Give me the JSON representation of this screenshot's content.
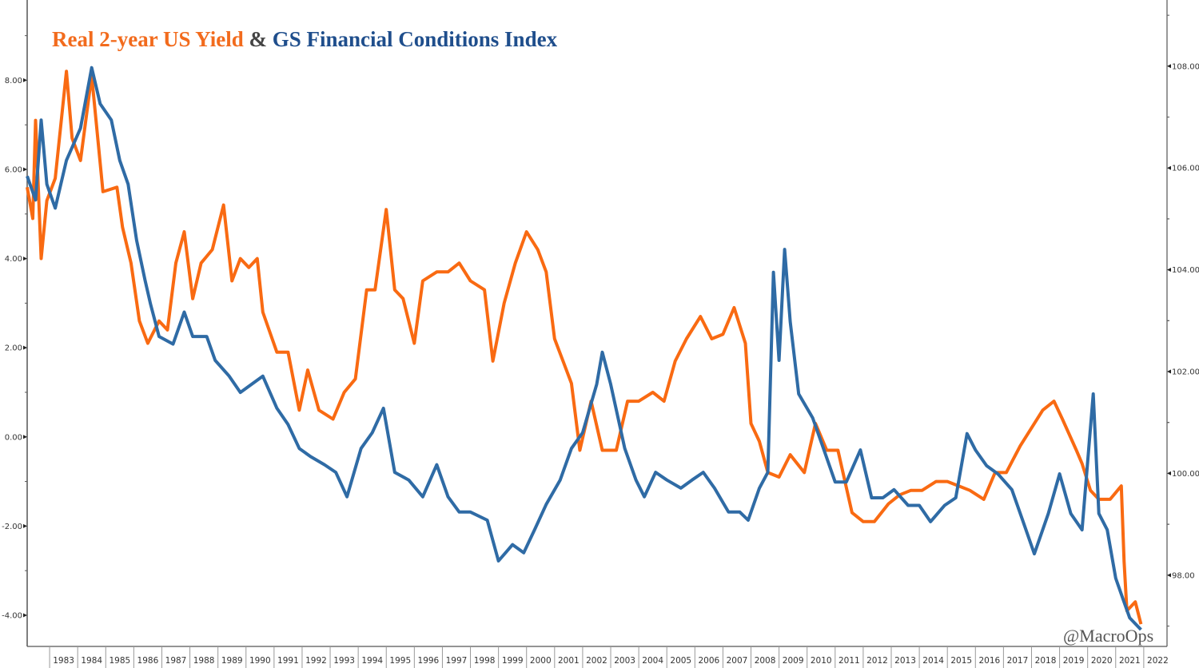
{
  "chart_data": {
    "type": "line",
    "title": {
      "part1": "Real 2-year US Yield",
      "joiner": "&",
      "part2": "GS Financial Conditions Index"
    },
    "watermark": "@MacroOps",
    "xlim": [
      1982.2,
      2022.83
    ],
    "x_tick_labels": [
      "1983",
      "1984",
      "1985",
      "1986",
      "1987",
      "1988",
      "1989",
      "1990",
      "1991",
      "1992",
      "1993",
      "1994",
      "1995",
      "1996",
      "1997",
      "1998",
      "1999",
      "2000",
      "2001",
      "2002",
      "2003",
      "2004",
      "2005",
      "2006",
      "2007",
      "2008",
      "2009",
      "2010",
      "2011",
      "2012",
      "2013",
      "2014",
      "2015",
      "2016",
      "2017",
      "2018",
      "2019",
      "2020",
      "2021",
      "2022"
    ],
    "y_left": {
      "ylim": [
        -4.7,
        9.8
      ],
      "ticks": [
        -4,
        -2,
        0,
        2,
        4,
        6,
        8
      ],
      "tick_labels": [
        "-4.00",
        "-2.00",
        "0.00",
        "2.00",
        "4.00",
        "6.00",
        "8.00"
      ]
    },
    "y_right": {
      "ylim": [
        96.6,
        109.3
      ],
      "ticks": [
        98,
        100,
        102,
        104,
        106,
        108
      ],
      "tick_labels": [
        "98.00",
        "100.00",
        "102.00",
        "104.00",
        "106.00",
        "108.00"
      ]
    },
    "grid": false,
    "legend": "none (title colored by series)",
    "series": [
      {
        "name": "Real 2-year US Yield",
        "axis": "left",
        "color": "#f96a12",
        "x": [
          1982.2,
          1982.4,
          1982.5,
          1982.7,
          1982.9,
          1983.2,
          1983.6,
          1983.8,
          1984.1,
          1984.5,
          1984.9,
          1985.4,
          1985.6,
          1985.9,
          1986.2,
          1986.5,
          1986.9,
          1987.2,
          1987.5,
          1987.8,
          1988.1,
          1988.4,
          1988.8,
          1989.2,
          1989.5,
          1989.8,
          1990.1,
          1990.4,
          1990.6,
          1991.1,
          1991.5,
          1991.9,
          1992.2,
          1992.6,
          1993.1,
          1993.5,
          1993.9,
          1994.3,
          1994.6,
          1995.0,
          1995.3,
          1995.6,
          1996.0,
          1996.3,
          1996.8,
          1997.2,
          1997.6,
          1998.0,
          1998.5,
          1998.8,
          1999.2,
          1999.6,
          2000.0,
          2000.4,
          2000.7,
          2001.0,
          2001.3,
          2001.6,
          2001.9,
          2002.3,
          2002.7,
          2003.2,
          2003.6,
          2004.0,
          2004.5,
          2004.9,
          2005.3,
          2005.7,
          2006.2,
          2006.6,
          2007.0,
          2007.4,
          2007.8,
          2008.0,
          2008.3,
          2008.6,
          2009.0,
          2009.4,
          2009.9,
          2010.3,
          2010.7,
          2011.1,
          2011.6,
          2012.0,
          2012.4,
          2012.9,
          2013.3,
          2013.7,
          2014.1,
          2014.6,
          2015.0,
          2015.4,
          2015.8,
          2016.3,
          2016.7,
          2017.1,
          2017.6,
          2018.0,
          2018.4,
          2018.8,
          2019.1,
          2019.6,
          2019.8,
          2020.1,
          2020.4,
          2020.8,
          2021.2,
          2021.3,
          2021.4,
          2021.7,
          2021.9
        ],
        "y": [
          5.6,
          4.9,
          7.1,
          4.0,
          5.3,
          5.8,
          8.2,
          6.7,
          6.2,
          8.1,
          5.5,
          5.6,
          4.7,
          3.9,
          2.6,
          2.1,
          2.6,
          2.4,
          3.9,
          4.6,
          3.1,
          3.9,
          4.2,
          5.2,
          3.5,
          4.0,
          3.8,
          4.0,
          2.8,
          1.9,
          1.9,
          0.6,
          1.5,
          0.6,
          0.4,
          1.0,
          1.3,
          3.3,
          3.3,
          5.1,
          3.3,
          3.1,
          2.1,
          3.5,
          3.7,
          3.7,
          3.9,
          3.5,
          3.3,
          1.7,
          3.0,
          3.9,
          4.6,
          4.2,
          3.7,
          2.2,
          1.7,
          1.2,
          -0.3,
          0.8,
          -0.3,
          -0.3,
          0.8,
          0.8,
          1.0,
          0.8,
          1.7,
          2.2,
          2.7,
          2.2,
          2.3,
          2.9,
          2.1,
          0.3,
          -0.1,
          -0.8,
          -0.9,
          -0.4,
          -0.8,
          0.3,
          -0.3,
          -0.3,
          -1.7,
          -1.9,
          -1.9,
          -1.5,
          -1.3,
          -1.2,
          -1.2,
          -1.0,
          -1.0,
          -1.1,
          -1.2,
          -1.4,
          -0.8,
          -0.8,
          -0.2,
          0.2,
          0.6,
          0.8,
          0.4,
          -0.3,
          -0.6,
          -1.2,
          -1.4,
          -1.4,
          -1.1,
          -2.8,
          -3.9,
          -3.7,
          -4.2
        ]
      },
      {
        "name": "GS Financial Conditions Index",
        "axis": "right",
        "color": "#2f6ba5",
        "x": [
          1982.2,
          1982.5,
          1982.7,
          1982.9,
          1983.2,
          1983.6,
          1984.1,
          1984.5,
          1984.8,
          1985.2,
          1985.5,
          1985.8,
          1986.1,
          1986.4,
          1986.6,
          1986.9,
          1987.4,
          1987.8,
          1988.1,
          1988.6,
          1988.9,
          1989.4,
          1989.8,
          1990.2,
          1990.6,
          1991.1,
          1991.5,
          1991.9,
          1992.3,
          1992.8,
          1993.2,
          1993.6,
          1994.1,
          1994.5,
          1994.9,
          1995.3,
          1995.8,
          1996.3,
          1996.8,
          1997.2,
          1997.6,
          1998.0,
          1998.6,
          1999.0,
          1999.5,
          1999.9,
          2000.3,
          2000.7,
          2001.2,
          2001.6,
          2002.0,
          2002.5,
          2002.7,
          2003.0,
          2003.5,
          2003.9,
          2004.2,
          2004.6,
          2005.0,
          2005.5,
          2005.9,
          2006.3,
          2006.7,
          2007.2,
          2007.6,
          2007.9,
          2008.3,
          2008.6,
          2008.8,
          2009.0,
          2009.2,
          2009.4,
          2009.7,
          2010.2,
          2010.6,
          2011.0,
          2011.4,
          2011.9,
          2012.3,
          2012.7,
          2013.1,
          2013.6,
          2014.0,
          2014.4,
          2014.9,
          2015.3,
          2015.7,
          2016.0,
          2016.4,
          2016.8,
          2017.3,
          2017.7,
          2018.1,
          2018.6,
          2019.0,
          2019.4,
          2019.8,
          2020.2,
          2020.4,
          2020.7,
          2021.0,
          2021.3,
          2021.5,
          2021.9
        ],
        "y": [
          105.84,
          105.37,
          106.94,
          105.68,
          105.21,
          106.15,
          106.78,
          107.97,
          107.26,
          106.94,
          106.15,
          105.68,
          104.58,
          103.8,
          103.32,
          102.69,
          102.54,
          103.17,
          102.69,
          102.69,
          102.22,
          101.91,
          101.59,
          101.75,
          101.91,
          101.28,
          100.96,
          100.49,
          100.33,
          100.17,
          100.02,
          99.54,
          100.49,
          100.8,
          101.28,
          100.02,
          99.87,
          99.54,
          100.17,
          99.54,
          99.24,
          99.24,
          99.08,
          98.28,
          98.6,
          98.44,
          98.91,
          99.39,
          99.87,
          100.49,
          100.8,
          101.75,
          102.38,
          101.75,
          100.49,
          99.87,
          99.54,
          100.02,
          99.87,
          99.71,
          99.87,
          100.02,
          99.71,
          99.24,
          99.24,
          99.08,
          99.71,
          100.02,
          103.95,
          102.22,
          104.4,
          102.98,
          101.56,
          101.09,
          100.46,
          99.83,
          99.83,
          100.46,
          99.52,
          99.52,
          99.68,
          99.37,
          99.37,
          99.05,
          99.37,
          99.52,
          100.78,
          100.46,
          100.15,
          99.99,
          99.68,
          99.05,
          98.42,
          99.21,
          99.99,
          99.21,
          98.89,
          101.56,
          99.21,
          98.89,
          97.94,
          97.47,
          97.16,
          96.93
        ]
      }
    ]
  }
}
